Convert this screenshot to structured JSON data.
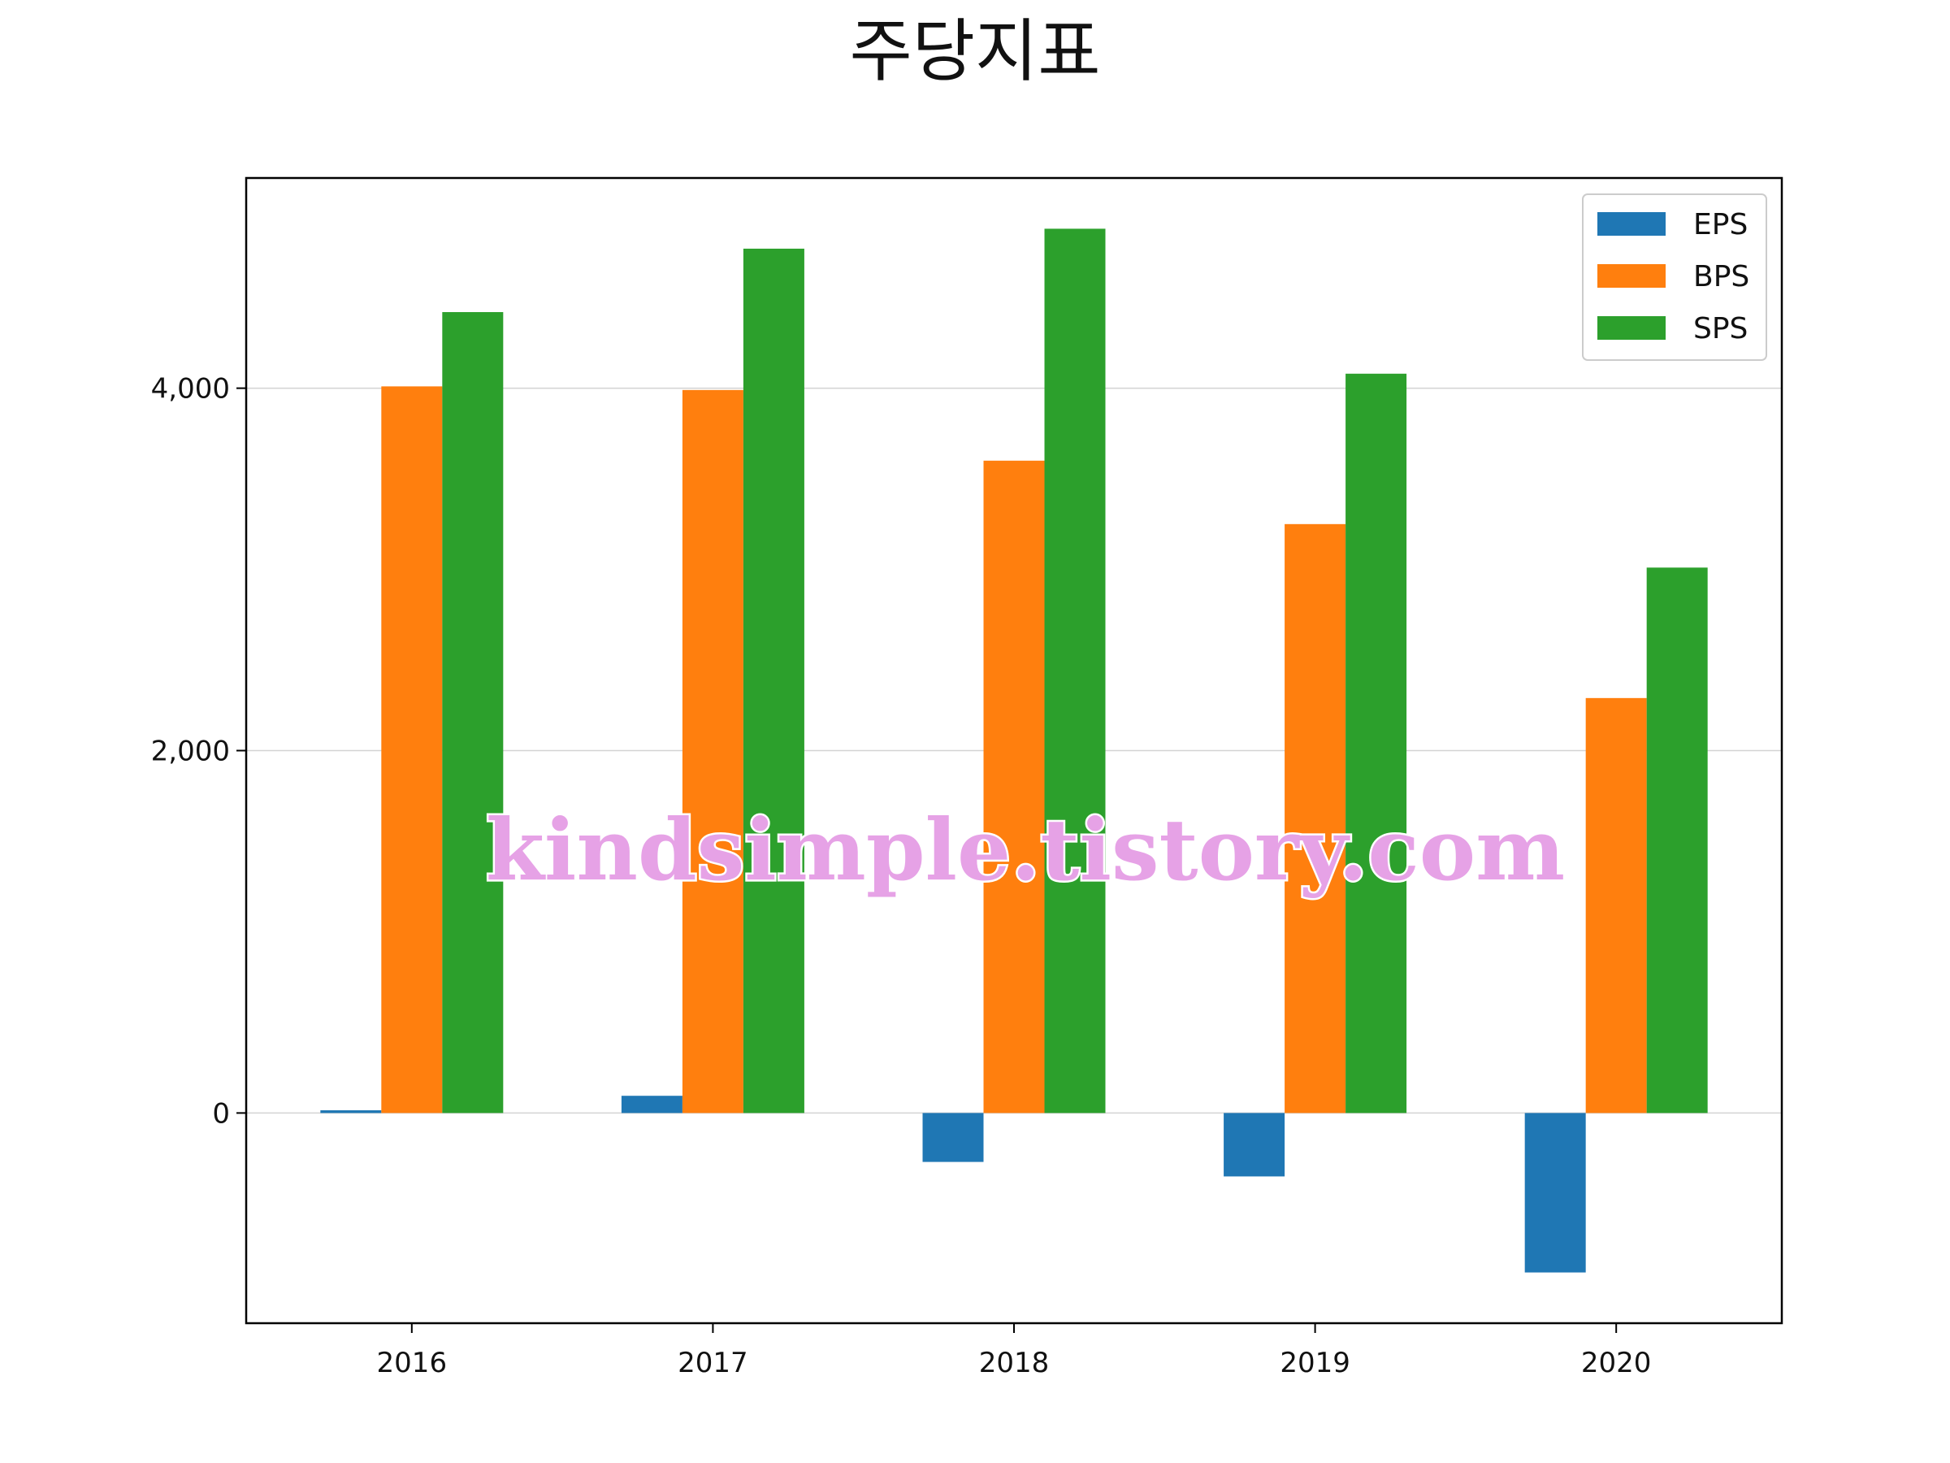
{
  "chart_data": {
    "type": "bar",
    "title": "주당지표",
    "categories": [
      "2016",
      "2017",
      "2018",
      "2019",
      "2020"
    ],
    "series": [
      {
        "name": "EPS",
        "color": "#1f77b4",
        "values": [
          15,
          95,
          -270,
          -350,
          -880
        ]
      },
      {
        "name": "BPS",
        "color": "#ff7f0e",
        "values": [
          4010,
          3990,
          3600,
          3250,
          2290
        ]
      },
      {
        "name": "SPS",
        "color": "#2ca02c",
        "values": [
          4420,
          4770,
          4880,
          4080,
          3010
        ]
      }
    ],
    "y_ticks": [
      0,
      2000,
      4000
    ],
    "y_tick_labels": [
      "0",
      "2,000",
      "4,000"
    ],
    "ylim": [
      -1160,
      5160
    ],
    "grid": "horizontal",
    "legend_position": "top-right",
    "watermark": "kindsimple.tistory.com"
  }
}
